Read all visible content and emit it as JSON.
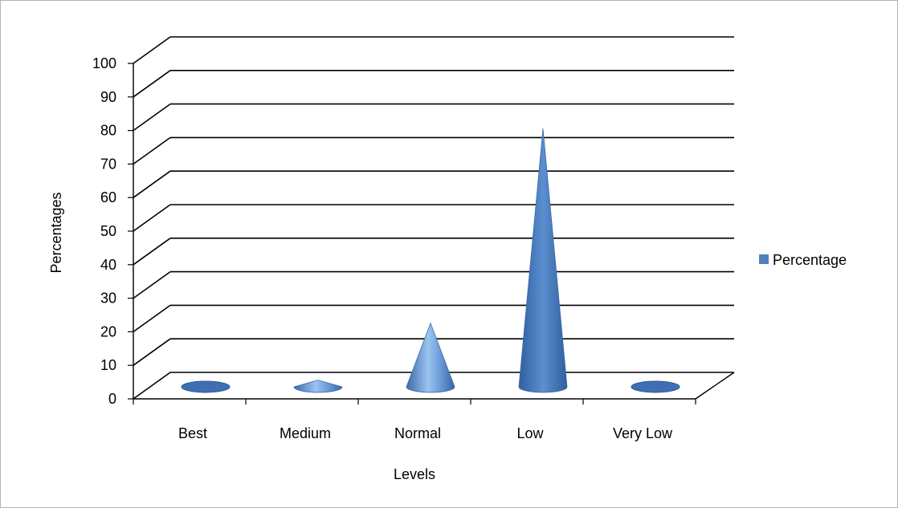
{
  "chart_data": {
    "type": "bar",
    "subtype": "3d-cone",
    "categories": [
      "Best",
      "Medium",
      "Normal",
      "Low",
      "Very Low"
    ],
    "series": [
      {
        "name": "Percentage",
        "values": [
          0,
          2,
          19,
          77,
          0
        ]
      }
    ],
    "xlabel": "Levels",
    "ylabel": "Percentages",
    "ylim": [
      0,
      100
    ],
    "yticks": [
      0,
      10,
      20,
      30,
      40,
      50,
      60,
      70,
      80,
      90,
      100
    ],
    "grid": true,
    "legend_position": "right",
    "colors": {
      "series": "#4f81bd",
      "grid": "#000000",
      "frame": "#b4b4b4"
    }
  }
}
